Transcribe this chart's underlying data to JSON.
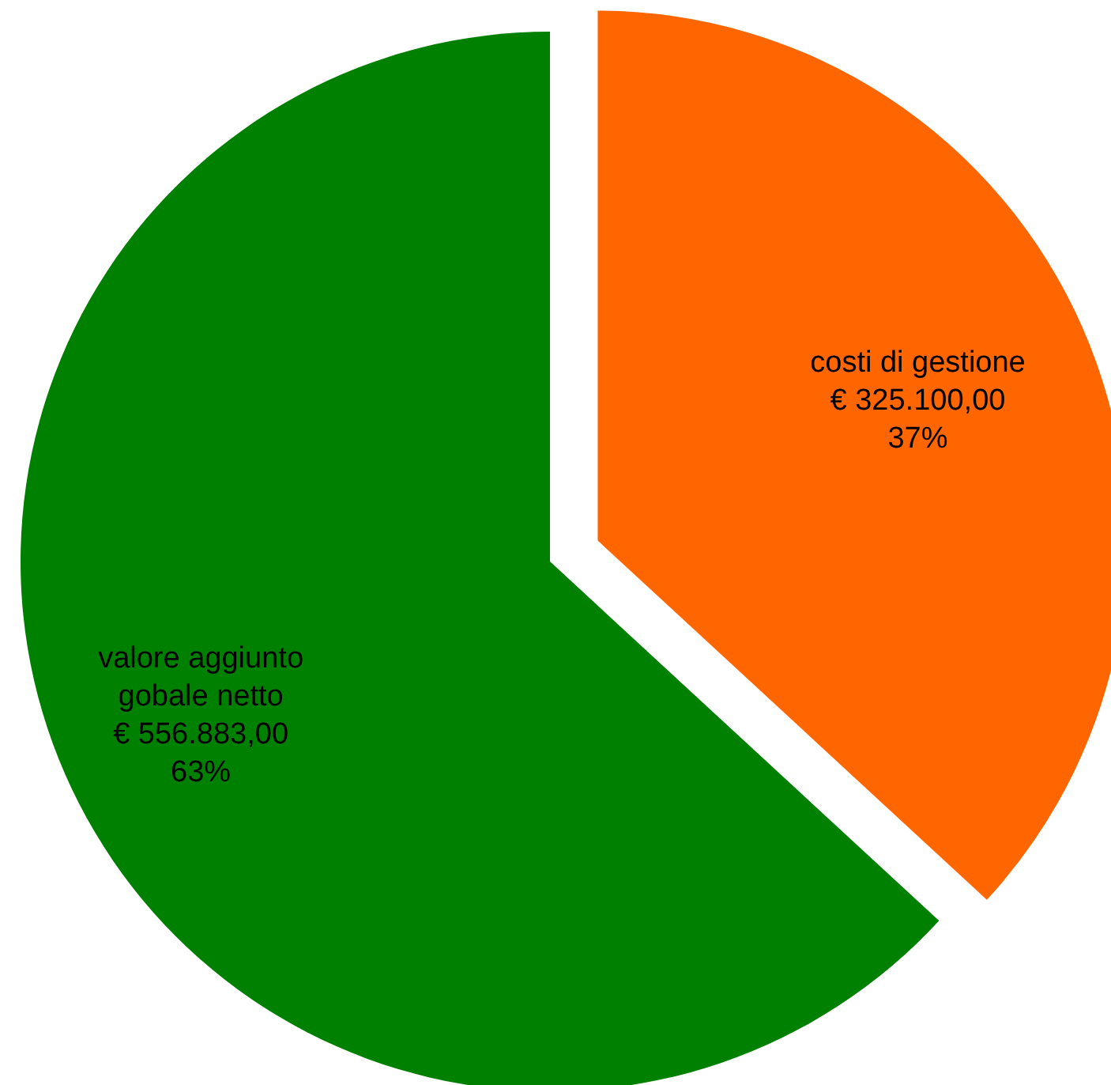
{
  "chart_data": {
    "type": "pie",
    "categories": [
      "costi di gestione",
      "valore aggiunto gobale netto"
    ],
    "values": [
      325100,
      556883
    ],
    "colors": [
      "#ff6600",
      "#008000"
    ],
    "value_labels": [
      "€ 325.100,00\n37%",
      "€ 556.883,00\n63%"
    ],
    "legend": false
  }
}
